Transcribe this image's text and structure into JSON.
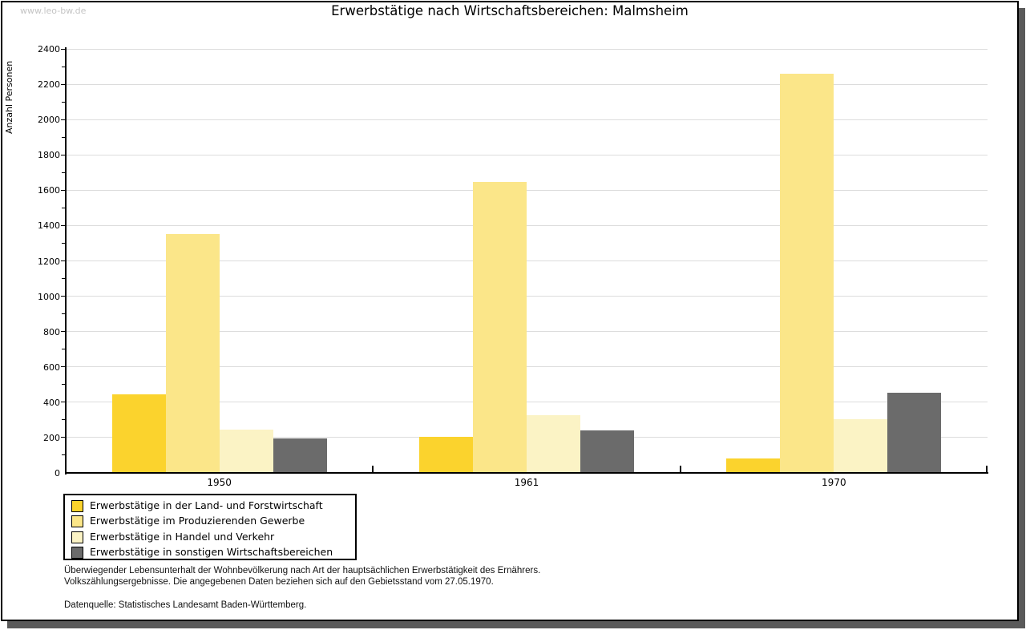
{
  "watermark": "www.leo-bw.de",
  "title": "Erwerbstätige nach Wirtschaftsbereichen: Malmsheim",
  "chart_data": {
    "type": "bar",
    "title": "Erwerbstätige nach Wirtschaftsbereichen: Malmsheim",
    "xlabel": "",
    "ylabel": "Anzahl Personen",
    "categories": [
      "1950",
      "1961",
      "1970"
    ],
    "series": [
      {
        "name": "Erwerbstätige in der Land- und Forstwirtschaft",
        "color": "#FBD32D",
        "values": [
          445,
          205,
          80
        ]
      },
      {
        "name": "Erwerbstätige im Produzierenden Gewerbe",
        "color": "#FBE689",
        "values": [
          1350,
          1645,
          2260
        ]
      },
      {
        "name": "Erwerbstätige in Handel und Verkehr",
        "color": "#FBF3C5",
        "values": [
          245,
          325,
          305
        ]
      },
      {
        "name": "Erwerbstätige in sonstigen Wirtschaftsbereichen",
        "color": "#6B6B6B",
        "values": [
          195,
          240,
          455
        ]
      }
    ],
    "ylim": [
      0,
      2400
    ],
    "ytick_step": 200,
    "yminor_step": 100,
    "grid": true,
    "legend_position": "bottom-left",
    "gridline_color": "#dcdcdc"
  },
  "footer": {
    "line1": "Überwiegender Lebensunterhalt der Wohnbevölkerung nach Art der hauptsächlichen Erwerbstätigkeit des Ernährers.",
    "line2": "Volkszählungsergebnisse. Die angegebenen Daten beziehen sich auf den Gebietsstand vom 27.05.1970.",
    "source": "Datenquelle: Statistisches Landesamt Baden-Württemberg."
  }
}
